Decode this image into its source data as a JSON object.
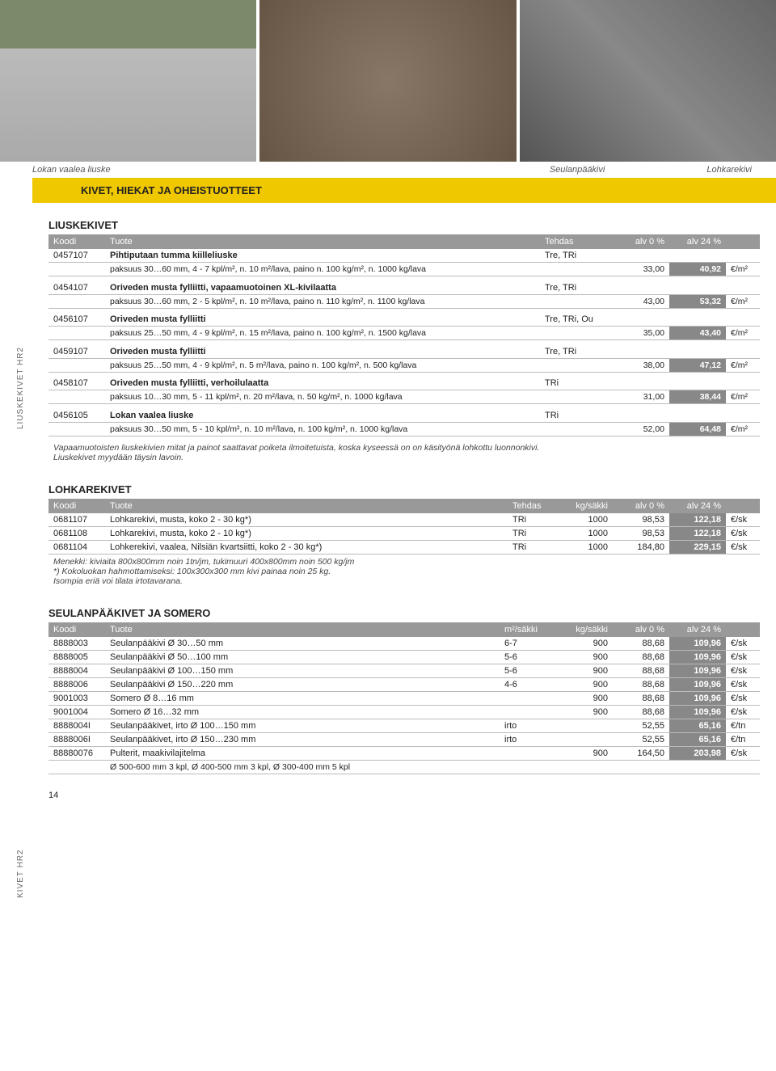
{
  "images": {
    "caption1": "Lokan vaalea liuske",
    "caption2": "Seulanpääkivi",
    "caption3": "Lohkarekivi"
  },
  "yellowBar": "KIVET, HIEKAT JA OHEISTUOTTEET",
  "sideLabel1": "LIUSKEKIVET HR2",
  "sideLabel2": "KIVET HR2",
  "liuskekivet": {
    "title": "LIUSKEKIVET",
    "header": {
      "c1": "Koodi",
      "c2": "Tuote",
      "c3": "Tehdas",
      "c4": "alv 0 %",
      "c5": "alv 24 %"
    },
    "rows": [
      {
        "code": "0457107",
        "name": "Pihtiputaan tumma kiilleliuske",
        "tehdas": "Tre, TRi",
        "sub": "paksuus 30…60 mm, 4 - 7 kpl/m², n. 10 m²/lava, paino n. 100 kg/m², n. 1000 kg/lava",
        "p0": "33,00",
        "p24": "40,92",
        "unit": "€/m²"
      },
      {
        "code": "0454107",
        "name": "Oriveden musta fylliitti, vapaamuotoinen XL-kivilaatta",
        "tehdas": "Tre, TRi",
        "sub": "paksuus 30…60 mm, 2 - 5 kpl/m², n. 10 m²/lava, paino n. 110 kg/m², n. 1100 kg/lava",
        "p0": "43,00",
        "p24": "53,32",
        "unit": "€/m²"
      },
      {
        "code": "0456107",
        "name": "Oriveden musta fylliitti",
        "tehdas": "Tre, TRi, Ou",
        "sub": "paksuus 25…50 mm, 4 - 9 kpl/m², n. 15 m²/lava, paino n. 100 kg/m², n. 1500 kg/lava",
        "p0": "35,00",
        "p24": "43,40",
        "unit": "€/m²"
      },
      {
        "code": "0459107",
        "name": "Oriveden musta fylliitti",
        "tehdas": "Tre, TRi",
        "sub": "paksuus 25…50 mm, 4 - 9 kpl/m², n. 5 m²/lava, paino n. 100 kg/m², n. 500 kg/lava",
        "p0": "38,00",
        "p24": "47,12",
        "unit": "€/m²"
      },
      {
        "code": "0458107",
        "name": "Oriveden musta fylliitti, verhoilulaatta",
        "tehdas": "TRi",
        "sub": "paksuus 10…30 mm, 5 - 11 kpl/m², n. 20 m²/lava, n. 50 kg/m², n. 1000 kg/lava",
        "p0": "31,00",
        "p24": "38,44",
        "unit": "€/m²"
      },
      {
        "code": "0456105",
        "name": "Lokan vaalea liuske",
        "tehdas": "TRi",
        "sub": "paksuus 30…50 mm, 5 - 10 kpl/m², n. 10 m²/lava, n. 100 kg/m², n. 1000 kg/lava",
        "p0": "52,00",
        "p24": "64,48",
        "unit": "€/m²"
      }
    ],
    "note1": "Vapaamuotoisten liuskekivien mitat ja painot saattavat poiketa ilmoitetuista, koska kyseessä on on käsityönä lohkottu luonnonkivi.",
    "note2": "Liuskekivet myydään täysin lavoin."
  },
  "lohkarekivet": {
    "title": "LOHKAREKIVET",
    "header": {
      "c1": "Koodi",
      "c2": "Tuote",
      "c3": "Tehdas",
      "c4": "kg/säkki",
      "c5": "alv 0 %",
      "c6": "alv 24 %"
    },
    "rows": [
      {
        "code": "0681107",
        "name": "Lohkarekivi, musta, koko 2 - 30 kg*)",
        "tehdas": "TRi",
        "kg": "1000",
        "p0": "98,53",
        "p24": "122,18",
        "unit": "€/sk"
      },
      {
        "code": "0681108",
        "name": "Lohkarekivi, musta, koko 2 - 10 kg*)",
        "tehdas": "TRi",
        "kg": "1000",
        "p0": "98,53",
        "p24": "122,18",
        "unit": "€/sk"
      },
      {
        "code": "0681104",
        "name": "Lohkerekivi, vaalea, Nilsiän kvartsiitti, koko 2 - 30 kg*)",
        "tehdas": "TRi",
        "kg": "1000",
        "p0": "184,80",
        "p24": "229,15",
        "unit": "€/sk"
      }
    ],
    "note1": "Menekki: kiviaita 800x800mm noin 1tn/jm, tukimuuri 400x800mm noin 500 kg/jm",
    "note2": "*) Kokoluokan hahmottamiseksi: 100x300x300 mm kivi painaa noin 25 kg.",
    "note3": "Isompia eriä voi tilata irtotavarana."
  },
  "seulanpaa": {
    "title": "SEULANPÄÄKIVET JA SOMERO",
    "header": {
      "c1": "Koodi",
      "c2": "Tuote",
      "c3": "m²/säkki",
      "c4": "kg/säkki",
      "c5": "alv 0 %",
      "c6": "alv 24 %"
    },
    "rows": [
      {
        "code": "8888003",
        "name": "Seulanpääkivi Ø 30…50 mm",
        "m2": "6-7",
        "kg": "900",
        "p0": "88,68",
        "p24": "109,96",
        "unit": "€/sk"
      },
      {
        "code": "8888005",
        "name": "Seulanpääkivi Ø 50…100 mm",
        "m2": "5-6",
        "kg": "900",
        "p0": "88,68",
        "p24": "109,96",
        "unit": "€/sk"
      },
      {
        "code": "8888004",
        "name": "Seulanpääkivi Ø 100…150 mm",
        "m2": "5-6",
        "kg": "900",
        "p0": "88,68",
        "p24": "109,96",
        "unit": "€/sk"
      },
      {
        "code": "8888006",
        "name": "Seulanpääkivi Ø 150…220 mm",
        "m2": "4-6",
        "kg": "900",
        "p0": "88,68",
        "p24": "109,96",
        "unit": "€/sk"
      },
      {
        "code": "9001003",
        "name": "Somero Ø 8…16 mm",
        "m2": "",
        "kg": "900",
        "p0": "88,68",
        "p24": "109,96",
        "unit": "€/sk"
      },
      {
        "code": "9001004",
        "name": "Somero Ø 16…32 mm",
        "m2": "",
        "kg": "900",
        "p0": "88,68",
        "p24": "109,96",
        "unit": "€/sk"
      },
      {
        "code": "8888004I",
        "name": "Seulanpääkivet, irto Ø 100…150 mm",
        "m2": "irto",
        "kg": "",
        "p0": "52,55",
        "p24": "65,16",
        "unit": "€/tn"
      },
      {
        "code": "8888006I",
        "name": "Seulanpääkivet, irto Ø 150…230 mm",
        "m2": "irto",
        "kg": "",
        "p0": "52,55",
        "p24": "65,16",
        "unit": "€/tn"
      },
      {
        "code": "88880076",
        "name": "Pulterit, maakivilajitelma",
        "m2": "",
        "kg": "900",
        "p0": "164,50",
        "p24": "203,98",
        "unit": "€/sk"
      }
    ],
    "footnote": "Ø 500-600 mm 3 kpl, Ø 400-500 mm 3 kpl, Ø 300-400 mm 5 kpl"
  },
  "pageNumber": "14"
}
